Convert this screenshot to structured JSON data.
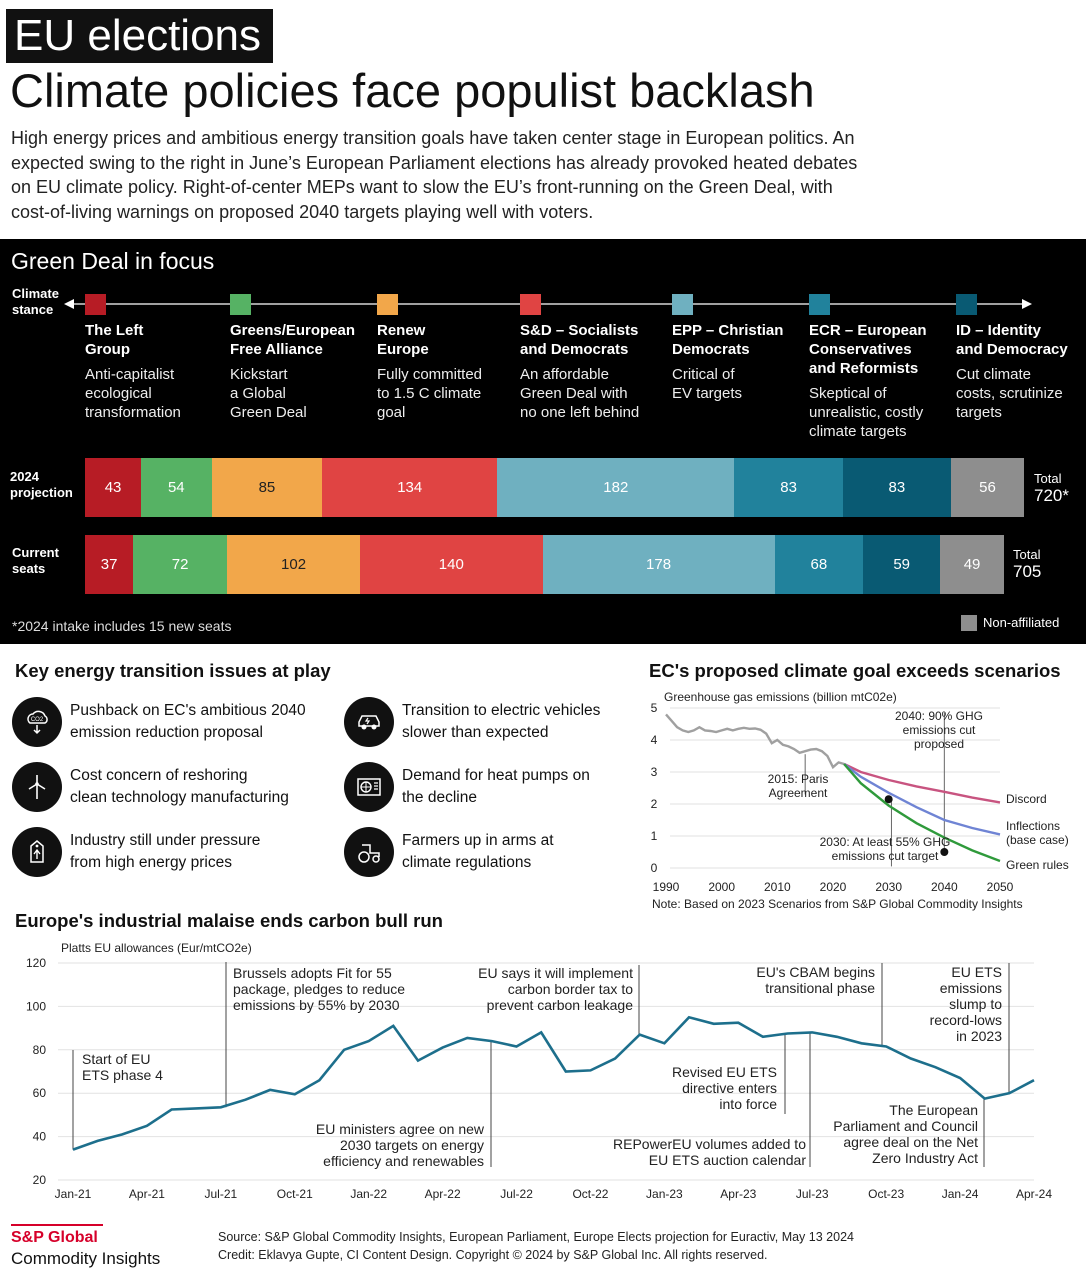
{
  "header": {
    "tag": "EU elections",
    "headline": "Climate policies face populist backlash",
    "intro": "High energy prices and ambitious energy transition goals have taken center stage in European politics. An expected swing to the right in June’s European Parliament elections has already provoked heated debates on EU climate policy. Right-of-center MEPs want to slow the EU’s front-running on the Green Deal, with cost-of-living warnings on proposed 2040 targets playing well with voters."
  },
  "green_deal": {
    "title": "Green Deal in focus",
    "stance_label_1": "Climate",
    "stance_label_2": "stance",
    "parties": [
      {
        "name_1": "The Left",
        "name_2": "Group",
        "name_3": "",
        "desc_1": "Anti-capitalist",
        "desc_2": "ecological",
        "desc_3": "transformation",
        "color": "#b71c25"
      },
      {
        "name_1": "Greens/European",
        "name_2": "Free Alliance",
        "name_3": "",
        "desc_1": "Kickstart",
        "desc_2": "a Global",
        "desc_3": "Green Deal",
        "color": "#56b264"
      },
      {
        "name_1": "Renew",
        "name_2": "Europe",
        "name_3": "",
        "desc_1": "Fully committed",
        "desc_2": "to 1.5 C climate",
        "desc_3": "goal",
        "color": "#f2a74a"
      },
      {
        "name_1": "S&D – Socialists",
        "name_2": "and Democrats",
        "name_3": "",
        "desc_1": "An affordable",
        "desc_2": "Green Deal with",
        "desc_3": "no one left behind",
        "color": "#e04443"
      },
      {
        "name_1": "EPP – Christian",
        "name_2": "Democrats",
        "name_3": "",
        "desc_1": "Critical of",
        "desc_2": "EV targets",
        "desc_3": "",
        "color": "#6fb0c0"
      },
      {
        "name_1": "ECR – European",
        "name_2": "Conservatives",
        "name_3": "and Reformists",
        "desc_1": "Skeptical of",
        "desc_2": "unrealistic, costly",
        "desc_3": "climate targets",
        "color": "#21829c"
      },
      {
        "name_1": "ID – Identity",
        "name_2": "and Democracy",
        "name_3": "",
        "desc_1": "Cut climate",
        "desc_2": "costs, scrutinize",
        "desc_3": "targets",
        "color": "#095a73"
      }
    ],
    "row1_label_1": "2024",
    "row1_label_2": "projection",
    "row2_label_1": "Current",
    "row2_label_2": "seats",
    "total1_label": "Total",
    "total1_value": "720*",
    "total2_label": "Total",
    "total2_value": "705",
    "footnote": "*2024 intake includes 15 new seats",
    "nonaffiliated_label": "Non-affiliated",
    "nonaffiliated_color": "#8e8e8e",
    "projection_2024": [
      43,
      54,
      85,
      134,
      182,
      83,
      83,
      56
    ],
    "current_seats": [
      37,
      72,
      102,
      140,
      178,
      68,
      59,
      49
    ]
  },
  "issues": {
    "title": "Key energy transition issues at play",
    "items": [
      {
        "line1": "Pushback on EC's ambitious 2040",
        "line2": "emission reduction proposal",
        "icon": "co2-cloud-icon"
      },
      {
        "line1": "Transition to electric vehicles",
        "line2": "slower than expected",
        "icon": "car-icon"
      },
      {
        "line1": "Cost concern of reshoring",
        "line2": "clean technology manufacturing",
        "icon": "wind-turbine-icon"
      },
      {
        "line1": "Demand for heat pumps on",
        "line2": "the decline",
        "icon": "heat-pump-icon"
      },
      {
        "line1": "Industry still under pressure",
        "line2": "from high energy prices",
        "icon": "price-tag-icon"
      },
      {
        "line1": "Farmers up in arms at",
        "line2": "climate regulations",
        "icon": "tractor-icon"
      }
    ]
  },
  "climate_goal": {
    "title": "EC's proposed climate goal exceeds scenarios",
    "note": "Note: Based on 2023 Scenarios from S&P Global Commodity Insights"
  },
  "carbon": {
    "title": "Europe's industrial malaise ends carbon bull run"
  },
  "chart_data": [
    {
      "type": "bar",
      "orientation": "horizontal-stacked",
      "categories": [
        "2024 projection",
        "Current seats"
      ],
      "series": [
        {
          "name": "The Left Group",
          "values": [
            43,
            37
          ]
        },
        {
          "name": "Greens/European Free Alliance",
          "values": [
            54,
            72
          ]
        },
        {
          "name": "Renew Europe",
          "values": [
            85,
            102
          ]
        },
        {
          "name": "S&D – Socialists and Democrats",
          "values": [
            134,
            140
          ]
        },
        {
          "name": "EPP – Christian Democrats",
          "values": [
            182,
            178
          ]
        },
        {
          "name": "ECR – European Conservatives and Reformists",
          "values": [
            83,
            68
          ]
        },
        {
          "name": "ID – Identity and Democracy",
          "values": [
            83,
            59
          ]
        },
        {
          "name": "Non-affiliated",
          "values": [
            56,
            49
          ]
        }
      ],
      "totals": [
        "720*",
        "705"
      ],
      "title": "Green Deal in focus"
    },
    {
      "type": "line",
      "title": "EC's proposed climate goal exceeds scenarios",
      "ylabel": "Greenhouse gas emissions (billion mtC02e)",
      "xlim": [
        1990,
        2050
      ],
      "ylim": [
        0,
        5
      ],
      "xticks": [
        "1990",
        "2000",
        "2010",
        "2020",
        "2030",
        "2040",
        "2050"
      ],
      "yticks": [
        "0",
        "1",
        "2",
        "3",
        "4",
        "5"
      ],
      "grid": true,
      "series": [
        {
          "name": "",
          "color": "#a0a0a0",
          "points": [
            [
              1990,
              4.8
            ],
            [
              1991,
              4.6
            ],
            [
              1992,
              4.4
            ],
            [
              1993,
              4.3
            ],
            [
              1994,
              4.25
            ],
            [
              1995,
              4.3
            ],
            [
              1996,
              4.4
            ],
            [
              1997,
              4.3
            ],
            [
              1998,
              4.28
            ],
            [
              1999,
              4.25
            ],
            [
              2000,
              4.3
            ],
            [
              2001,
              4.35
            ],
            [
              2002,
              4.3
            ],
            [
              2003,
              4.35
            ],
            [
              2004,
              4.38
            ],
            [
              2005,
              4.35
            ],
            [
              2006,
              4.36
            ],
            [
              2007,
              4.32
            ],
            [
              2008,
              4.2
            ],
            [
              2009,
              3.9
            ],
            [
              2010,
              4.0
            ],
            [
              2011,
              3.85
            ],
            [
              2012,
              3.8
            ],
            [
              2013,
              3.72
            ],
            [
              2014,
              3.6
            ],
            [
              2015,
              3.65
            ],
            [
              2016,
              3.7
            ],
            [
              2017,
              3.72
            ],
            [
              2018,
              3.65
            ],
            [
              2019,
              3.5
            ],
            [
              2020,
              3.15
            ],
            [
              2021,
              3.3
            ],
            [
              2022,
              3.25
            ]
          ]
        },
        {
          "name": "Discord",
          "color": "#c85480",
          "points": [
            [
              2022,
              3.25
            ],
            [
              2025,
              3.0
            ],
            [
              2030,
              2.75
            ],
            [
              2035,
              2.55
            ],
            [
              2040,
              2.38
            ],
            [
              2045,
              2.2
            ],
            [
              2050,
              2.05
            ]
          ]
        },
        {
          "name": "Inflections (base case)",
          "color": "#6f84d4",
          "points": [
            [
              2022,
              3.25
            ],
            [
              2025,
              2.85
            ],
            [
              2030,
              2.35
            ],
            [
              2035,
              1.9
            ],
            [
              2040,
              1.5
            ],
            [
              2045,
              1.25
            ],
            [
              2050,
              1.05
            ]
          ]
        },
        {
          "name": "Green rules",
          "color": "#2f9a3b",
          "points": [
            [
              2022,
              3.25
            ],
            [
              2025,
              2.65
            ],
            [
              2030,
              1.95
            ],
            [
              2035,
              1.4
            ],
            [
              2040,
              0.95
            ],
            [
              2045,
              0.55
            ],
            [
              2050,
              0.22
            ]
          ]
        }
      ],
      "targets": [
        {
          "label": "2030: At least 55% GHG emissions cut target",
          "x": 2030,
          "y": 2.15
        },
        {
          "label": "2040: 90% GHG emissions cut proposed",
          "x": 2040,
          "y": 0.5
        }
      ],
      "annotations": [
        "2015: Paris Agreement",
        "2040: 90% GHG emissions cut proposed",
        "2030: At least 55% GHG emissions cut target"
      ]
    },
    {
      "type": "line",
      "title": "Europe's industrial malaise ends carbon bull run",
      "ylabel": "Platts EU allowances (Eur/mtCO2e)",
      "ylim": [
        20,
        120
      ],
      "yticks": [
        "20",
        "40",
        "60",
        "80",
        "100",
        "120"
      ],
      "xticks": [
        "Jan-21",
        "Apr-21",
        "Jul-21",
        "Oct-21",
        "Jan-22",
        "Apr-22",
        "Jul-22",
        "Oct-22",
        "Jan-23",
        "Apr-23",
        "Jul-23",
        "Oct-23",
        "Jan-24",
        "Apr-24"
      ],
      "grid": true,
      "series": [
        {
          "name": "",
          "color": "#1d6f8c",
          "x": [
            "Jan-21",
            "Feb-21",
            "Mar-21",
            "Apr-21",
            "May-21",
            "Jun-21",
            "Jul-21",
            "Aug-21",
            "Sep-21",
            "Oct-21",
            "Nov-21",
            "Dec-21",
            "Jan-22",
            "Feb-22",
            "Mar-22",
            "Apr-22",
            "May-22",
            "Jun-22",
            "Jul-22",
            "Aug-22",
            "Sep-22",
            "Oct-22",
            "Nov-22",
            "Dec-22",
            "Jan-23",
            "Feb-23",
            "Mar-23",
            "Apr-23",
            "May-23",
            "Jun-23",
            "Jul-23",
            "Aug-23",
            "Sep-23",
            "Oct-23",
            "Nov-23",
            "Dec-23",
            "Jan-24",
            "Feb-24",
            "Mar-24",
            "Apr-24"
          ],
          "values": [
            34,
            38,
            41,
            45,
            52.5,
            53,
            53.5,
            57,
            61.5,
            59.5,
            66,
            80,
            84,
            91,
            75,
            81,
            85.5,
            84,
            81.5,
            88,
            70,
            70.5,
            76,
            87,
            83,
            95,
            92,
            92.5,
            86,
            87.5,
            88,
            86,
            83,
            81.5,
            76,
            72,
            67,
            57.5,
            60,
            66
          ]
        }
      ],
      "annotations": [
        {
          "label": "Start of EU ETS phase 4",
          "x": "Jan-21"
        },
        {
          "label": "Brussels adopts Fit for 55 package, pledges to reduce emissions by 55% by 2030",
          "x": "Jul-21"
        },
        {
          "label": "EU ministers agree on new 2030 targets on energy efficiency and renewables",
          "x": "Jun-22"
        },
        {
          "label": "EU says it will implement carbon border tax to prevent carbon leakage",
          "x": "Dec-22"
        },
        {
          "label": "Revised EU ETS directive enters into force",
          "x": "Jun-23"
        },
        {
          "label": "REPowerEU volumes added to EU ETS auction calendar",
          "x": "Jul-23"
        },
        {
          "label": "EU's CBAM begins transitional phase",
          "x": "Oct-23"
        },
        {
          "label": "The European Parliament and Council agree deal on the Net Zero Industry Act",
          "x": "Feb-24"
        },
        {
          "label": "EU ETS emissions slump to record-lows in 2023",
          "x": "Apr-24"
        }
      ]
    }
  ],
  "footer": {
    "logo_line1": "S&P Global",
    "logo_line2": "Commodity Insights",
    "source": "Source: S&P Global Commodity Insights, European Parliament, Europe Elects projection for Euractiv, May 13 2024",
    "credit": "Credit: Eklavya Gupte, CI Content Design. Copyright © 2024 by S&P Global Inc. All rights reserved."
  }
}
